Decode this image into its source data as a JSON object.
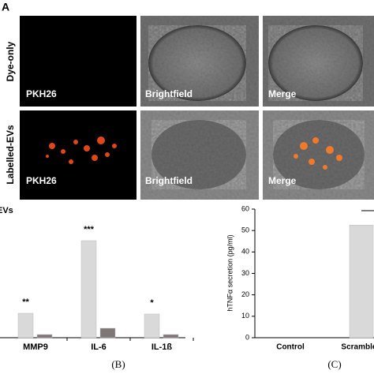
{
  "panel_a": {
    "label": "A",
    "rows": [
      {
        "label": "Dye-only",
        "images": [
          "PKH26",
          "Brightfield",
          "Merge"
        ]
      },
      {
        "label": "Labelled-EVs",
        "images": [
          "PKH26",
          "Brightfield",
          "Merge"
        ]
      }
    ]
  },
  "chart_data": [
    {
      "type": "bar",
      "title": "EVs",
      "categories": [
        "MMP9",
        "IL-6",
        "IL-1ß"
      ],
      "series": [
        {
          "color": "#d9d9d9",
          "values": [
            31,
            123,
            30
          ]
        },
        {
          "color": "#7f7676",
          "values": [
            4,
            12,
            4
          ]
        }
      ],
      "annotations": [
        "**",
        "***",
        "*"
      ],
      "caption": "(B)"
    },
    {
      "type": "bar",
      "ylabel": "hTNFα secretion (pg/ml)",
      "categories": [
        "Control",
        "Scramble-I"
      ],
      "values": [
        0,
        52.5
      ],
      "color": "#d9d9d9",
      "ylim": [
        0,
        60
      ],
      "yticks": [
        0,
        10,
        20,
        30,
        40,
        50,
        60
      ],
      "caption": "(C)"
    }
  ]
}
